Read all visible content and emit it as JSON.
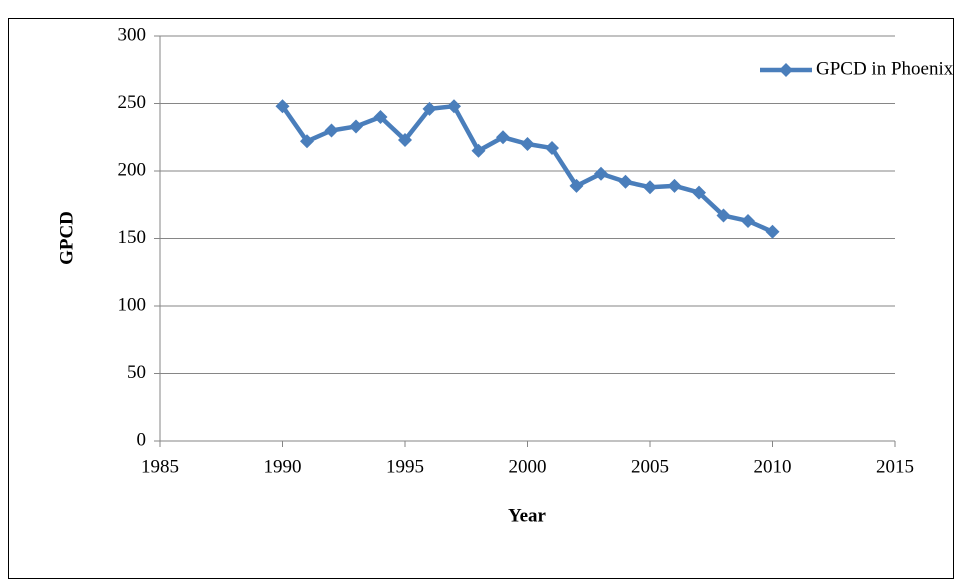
{
  "chart_data": {
    "type": "line",
    "xlabel": "Year",
    "ylabel": "GPCD",
    "x": [
      1990,
      1991,
      1992,
      1993,
      1994,
      1995,
      1996,
      1997,
      1998,
      1999,
      2000,
      2001,
      2002,
      2003,
      2004,
      2005,
      2006,
      2007,
      2008,
      2009,
      2010
    ],
    "series": [
      {
        "name": "GPCD in Phoenix",
        "color": "#4a7ebb",
        "values": [
          248,
          222,
          230,
          233,
          240,
          223,
          246,
          248,
          215,
          225,
          220,
          217,
          189,
          198,
          192,
          188,
          189,
          184,
          167,
          163,
          155
        ]
      }
    ],
    "xlim": [
      1985,
      2015
    ],
    "xticks": [
      1985,
      1990,
      1995,
      2000,
      2005,
      2010,
      2015
    ],
    "ylim": [
      0,
      300
    ],
    "yticks": [
      0,
      50,
      100,
      150,
      200,
      250,
      300
    ],
    "grid": true,
    "legend": "upper right"
  }
}
